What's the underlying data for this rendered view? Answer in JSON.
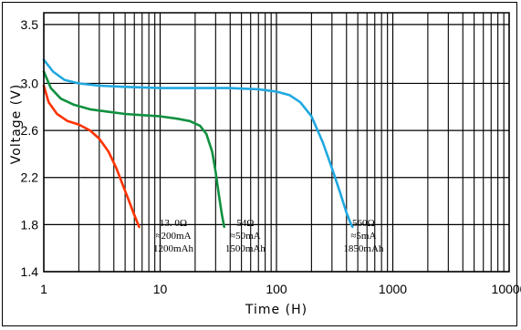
{
  "chart_data": {
    "type": "line",
    "xlabel": "Time (H)",
    "ylabel": "Voltage (V)",
    "x_scale": "log",
    "xlim": [
      1,
      10000
    ],
    "ylim": [
      1.4,
      3.6
    ],
    "x_tick_labels": [
      "1",
      "10",
      "100",
      "1000",
      "10000"
    ],
    "y_tick_labels": [
      "3.5",
      "3.0",
      "2.6",
      "2.2",
      "1.8",
      "1.4"
    ],
    "grid": true,
    "series": [
      {
        "color": "#ff3300",
        "x": [
          1,
          1.1,
          1.3,
          1.6,
          2.0,
          2.5,
          3.0,
          3.6,
          4.2,
          4.8,
          5.4,
          5.9,
          6.3,
          6.6
        ],
        "y": [
          2.98,
          2.84,
          2.74,
          2.68,
          2.65,
          2.6,
          2.53,
          2.42,
          2.28,
          2.13,
          2.0,
          1.9,
          1.83,
          1.78
        ]
      },
      {
        "color": "#109040",
        "x": [
          1,
          1.15,
          1.4,
          1.8,
          2.5,
          3.5,
          5,
          7,
          10,
          14,
          18,
          22,
          25,
          28,
          30,
          32,
          34,
          35.5
        ],
        "y": [
          3.1,
          2.96,
          2.87,
          2.82,
          2.78,
          2.76,
          2.74,
          2.73,
          2.72,
          2.7,
          2.68,
          2.64,
          2.57,
          2.42,
          2.25,
          2.05,
          1.88,
          1.78
        ]
      },
      {
        "color": "#20a8e0",
        "x": [
          1,
          1.2,
          1.5,
          2,
          3,
          5,
          10,
          20,
          40,
          70,
          100,
          130,
          160,
          200,
          250,
          300,
          350,
          400,
          430,
          450
        ],
        "y": [
          3.2,
          3.1,
          3.03,
          3.0,
          2.98,
          2.97,
          2.96,
          2.96,
          2.96,
          2.95,
          2.93,
          2.9,
          2.84,
          2.72,
          2.5,
          2.28,
          2.08,
          1.9,
          1.82,
          1.78
        ]
      }
    ],
    "annotations": [
      {
        "x": 13,
        "lines": [
          "13. 0Ω",
          "≈200mA",
          "1200mAh"
        ]
      },
      {
        "x": 54,
        "lines": [
          "54Ω",
          "≈50mA",
          "1500mAh"
        ]
      },
      {
        "x": 560,
        "lines": [
          "560Ω",
          "≈5mA",
          "1850mAh"
        ]
      }
    ]
  }
}
